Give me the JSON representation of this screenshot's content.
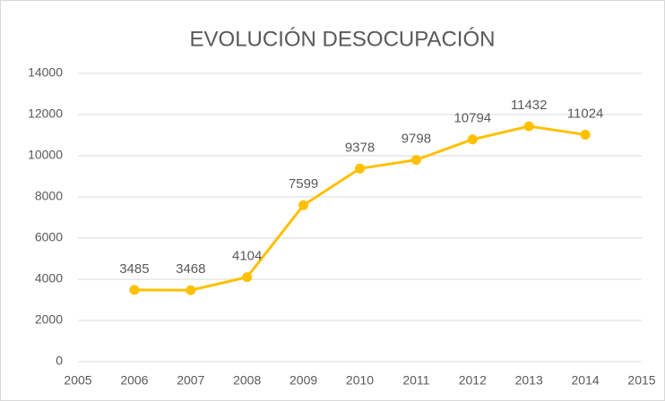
{
  "chart_data": {
    "type": "line",
    "title": "EVOLUCIÓN DESOCUPACIÓN",
    "x": [
      2006,
      2007,
      2008,
      2009,
      2010,
      2011,
      2012,
      2013,
      2014
    ],
    "values": [
      3485,
      3468,
      4104,
      7599,
      9378,
      9798,
      10794,
      11432,
      11024
    ],
    "color": "#FFC000",
    "xlim": [
      2005,
      2015
    ],
    "xticks": [
      2005,
      2006,
      2007,
      2008,
      2009,
      2010,
      2011,
      2012,
      2013,
      2014,
      2015
    ],
    "ylim": [
      0,
      14000
    ],
    "yticks": [
      0,
      2000,
      4000,
      6000,
      8000,
      10000,
      12000,
      14000
    ],
    "grid": true
  }
}
